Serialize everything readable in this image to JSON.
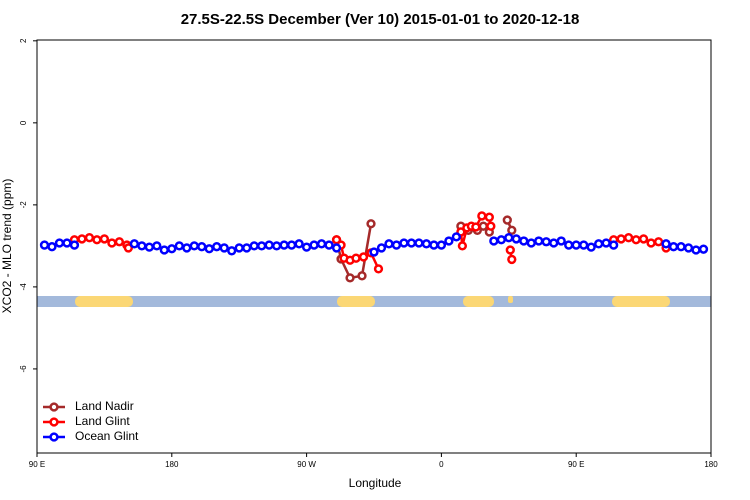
{
  "chart_data": {
    "type": "line",
    "title": "27.5S-22.5S December (Ver 10)   2015-01-01 to 2020-12-18",
    "x_label": "Longitude",
    "y_label": "XCO2 - MLO trend (ppm)",
    "xlim": [
      90,
      540
    ],
    "ylim": [
      -8.05,
      2.02
    ],
    "xticks": [
      {
        "value": 90,
        "label": "90 E"
      },
      180,
      {
        "value": 270,
        "label": "90 W"
      },
      {
        "value": 360,
        "label": "0"
      },
      {
        "value": 450,
        "label": "90 E"
      },
      {
        "value": 540,
        "label": "180"
      }
    ],
    "yticks": [
      2,
      0,
      -2,
      -4,
      -6
    ],
    "legend": "bottom-left",
    "series": [
      {
        "name": "Land Nadir",
        "color": "#a52a2a",
        "x": [
          290,
          293,
          299,
          307,
          313,
          null,
          373,
          378,
          384,
          388,
          392,
          null,
          404,
          407
        ],
        "values": [
          -2.85,
          -3.32,
          -3.78,
          -3.73,
          -2.46,
          null,
          -2.52,
          -2.62,
          -2.62,
          -2.52,
          -2.66,
          null,
          -2.37,
          -2.62
        ]
      },
      {
        "name": "Land Glint",
        "color": "#ff0000",
        "x": [
          115,
          120,
          125,
          130,
          135,
          140,
          145,
          150,
          151,
          null,
          290,
          293,
          295,
          299,
          303,
          308,
          313,
          318,
          null,
          373,
          374,
          377,
          380,
          383,
          387,
          392,
          393,
          null,
          406,
          407,
          null,
          475,
          480,
          485,
          490,
          495,
          500,
          505,
          510
        ],
        "values": [
          -2.85,
          -2.83,
          -2.8,
          -2.85,
          -2.83,
          -2.93,
          -2.9,
          -2.98,
          -3.05,
          null,
          -2.85,
          -2.98,
          -3.3,
          -3.35,
          -3.3,
          -3.27,
          -3.17,
          -3.56,
          null,
          -2.66,
          -3.0,
          -2.56,
          -2.52,
          -2.54,
          -2.27,
          -2.3,
          -2.52,
          null,
          -3.1,
          -3.33,
          null,
          -2.85,
          -2.83,
          -2.8,
          -2.85,
          -2.83,
          -2.93,
          -2.9,
          -3.05
        ]
      },
      {
        "name": "Ocean Glint",
        "color": "#0000ff",
        "x": [
          95,
          100,
          105,
          110,
          115,
          120,
          125,
          130,
          135,
          140,
          145,
          150,
          155,
          160,
          165,
          170,
          175,
          180,
          185,
          190,
          195,
          200,
          205,
          210,
          215,
          220,
          225,
          230,
          235,
          240,
          245,
          250,
          255,
          260,
          265,
          270,
          275,
          280,
          285,
          290,
          295,
          300,
          305,
          310,
          315,
          320,
          325,
          330,
          335,
          340,
          345,
          350,
          355,
          360,
          365,
          370,
          375,
          380,
          385,
          390,
          395,
          400,
          405,
          410,
          415,
          420,
          425,
          430,
          435,
          440,
          445,
          450,
          455,
          460,
          465,
          470,
          475,
          480,
          485,
          490,
          495,
          500,
          505,
          510,
          515,
          520,
          525,
          530,
          535
        ],
        "values": [
          -2.98,
          -3.02,
          -2.93,
          -2.93,
          -2.98,
          null,
          null,
          null,
          null,
          null,
          null,
          null,
          -2.95,
          -3.0,
          -3.03,
          -3.0,
          -3.1,
          -3.07,
          -3.0,
          -3.05,
          -3.0,
          -3.02,
          -3.07,
          -3.02,
          -3.05,
          -3.12,
          -3.05,
          -3.05,
          -3.0,
          -3.0,
          -2.98,
          -3.0,
          -2.98,
          -2.98,
          -2.95,
          -3.03,
          -2.98,
          -2.95,
          -2.98,
          -3.05,
          null,
          null,
          null,
          null,
          -3.15,
          -3.05,
          -2.95,
          -2.98,
          -2.93,
          -2.93,
          -2.93,
          -2.95,
          -2.98,
          -2.98,
          -2.88,
          -2.78,
          null,
          null,
          null,
          null,
          -2.88,
          -2.85,
          -2.8,
          -2.83,
          -2.88,
          -2.93,
          -2.88,
          -2.9,
          -2.93,
          -2.88,
          -2.98,
          -2.98,
          -2.98,
          -3.03,
          -2.95,
          -2.93,
          -2.98,
          null,
          null,
          null,
          null,
          null,
          null,
          -2.95,
          -3.02,
          -3.02,
          -3.05,
          -3.1,
          -3.08
        ]
      }
    ]
  }
}
